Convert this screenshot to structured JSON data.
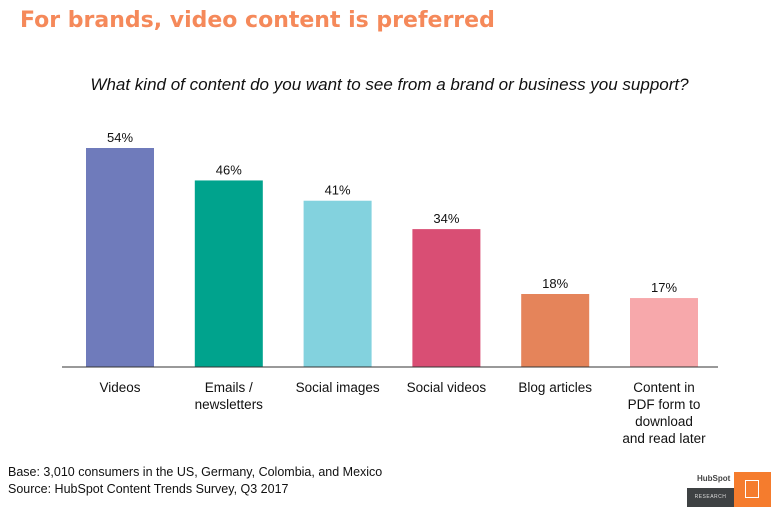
{
  "title": "For brands, video content is preferred",
  "footer": {
    "base": "Base: 3,010 consumers in the US, Germany, Colombia, and Mexico",
    "source": "Source: HubSpot Content Trends Survey, Q3 2017"
  },
  "logo": {
    "brand": "HubSpot",
    "tag": "RESEARCH"
  },
  "chart_data": {
    "type": "bar",
    "title": "What kind of content do you want to see from a brand or business you support?",
    "categories": [
      [
        "Videos"
      ],
      [
        "Emails /",
        "newsletters"
      ],
      [
        "Social images"
      ],
      [
        "Social videos"
      ],
      [
        "Blog articles"
      ],
      [
        "Content in",
        "PDF form to",
        "download",
        "and read later"
      ]
    ],
    "values": [
      54,
      46,
      41,
      34,
      18,
      17
    ],
    "labels": [
      "54%",
      "46%",
      "41%",
      "34%",
      "18%",
      "17%"
    ],
    "colors": [
      "#6f7bbb",
      "#00a38d",
      "#83d2de",
      "#d94e74",
      "#e5845a",
      "#f7a8ab"
    ],
    "ylim": [
      0,
      60
    ],
    "grid": false
  }
}
